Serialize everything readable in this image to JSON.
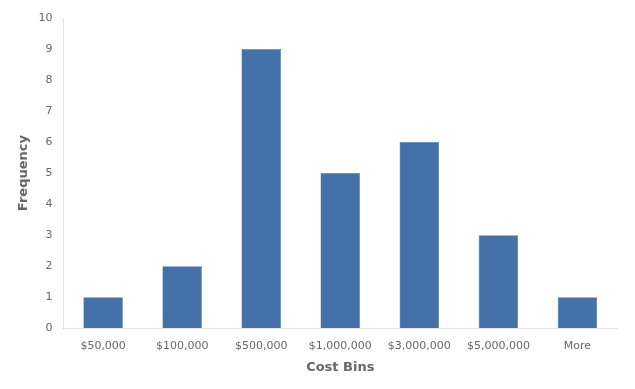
{
  "chart_data": {
    "type": "bar",
    "categories": [
      "$50,000",
      "$100,000",
      "$500,000",
      "$1,000,000",
      "$3,000,000",
      "$5,000,000",
      "More"
    ],
    "values": [
      1,
      2,
      9,
      5,
      6,
      3,
      1
    ],
    "color": "#4472a8",
    "xlabel": "Cost Bins",
    "ylabel": "Frequency",
    "ylim": [
      0,
      10
    ],
    "yticks": [
      0,
      1,
      2,
      3,
      4,
      5,
      6,
      7,
      8,
      9,
      10
    ],
    "grid": false
  }
}
